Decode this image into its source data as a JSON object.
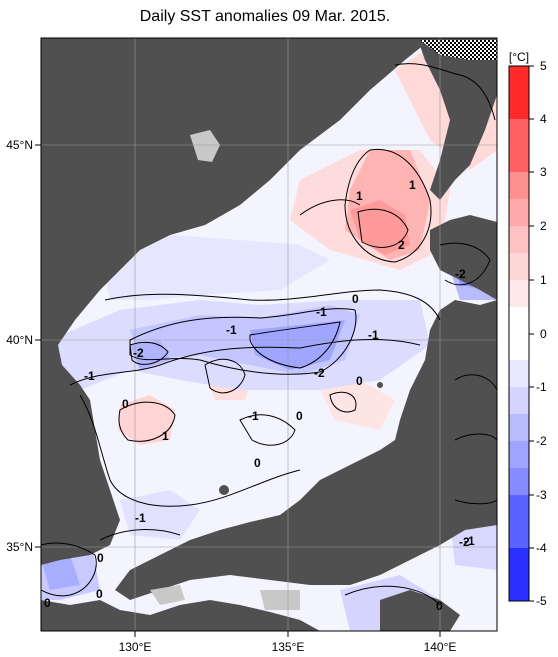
{
  "title": "Daily SST anomalies 09 Mar. 2015.",
  "map": {
    "lon_labels": [
      "130°E",
      "135°E",
      "140°E"
    ],
    "lat_labels": [
      "45°N",
      "40°N",
      "35°N"
    ],
    "contour_labels": [
      "1",
      "1",
      "2",
      "0",
      "-1",
      "-1",
      "-1",
      "-2",
      "-2",
      "-1",
      "-2",
      "0",
      "0",
      "-1",
      "0",
      "1",
      "0",
      "-1",
      "0",
      "0",
      "0",
      "-2",
      "-1",
      "0"
    ]
  },
  "colorbar": {
    "unit": "[°C]",
    "ticks": [
      "5",
      "4",
      "3",
      "2",
      "1",
      "0",
      "-1",
      "-2",
      "-3",
      "-4",
      "-5"
    ],
    "colors": [
      "#ff2020",
      "#ff5c5c",
      "#ff8c8c",
      "#ffb0b0",
      "#ffd0d0",
      "#ffeaea",
      "#ffffff",
      "#eaeaff",
      "#d0d0ff",
      "#aab0ff",
      "#7c84ff",
      "#5058ff",
      "#2a30ff"
    ]
  },
  "colors": {
    "land": "#505050",
    "lake": "#c8c8c8"
  }
}
